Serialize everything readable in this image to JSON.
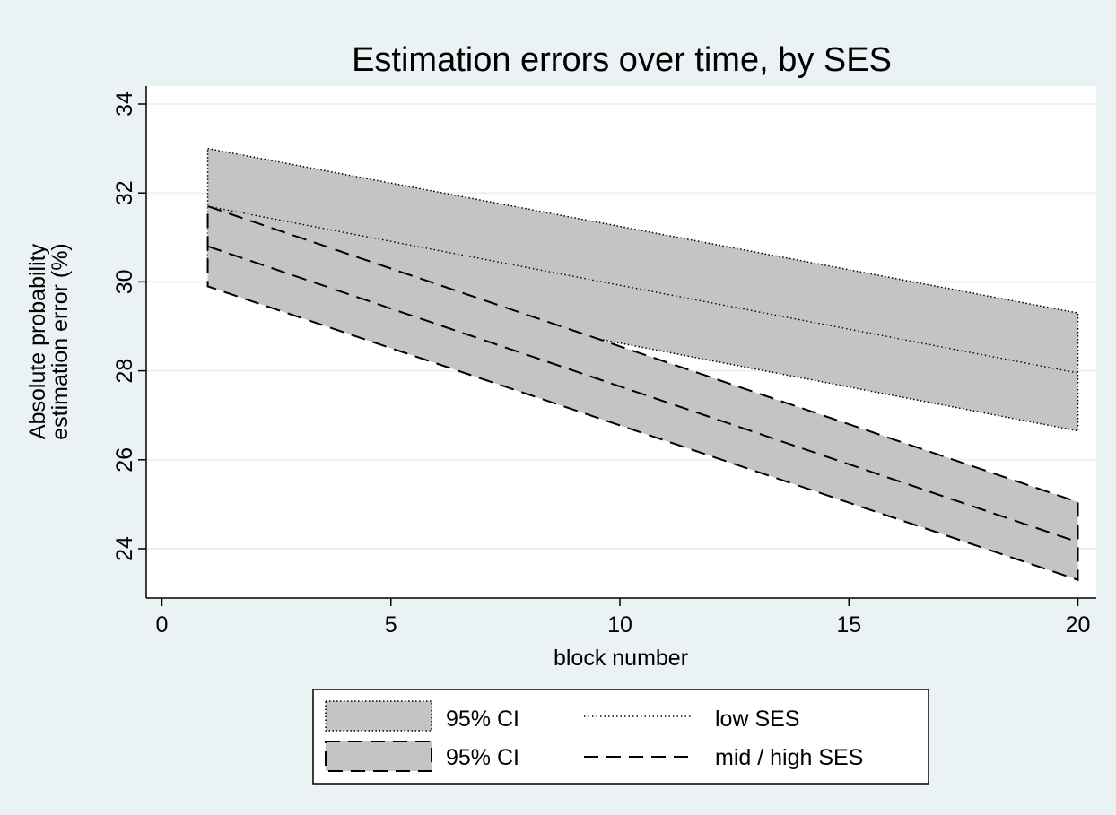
{
  "chart_data": {
    "type": "area",
    "title": "Estimation errors over time, by SES",
    "xlabel": "block number",
    "ylabel": [
      "Absolute probability",
      "estimation error (%)"
    ],
    "xlim": [
      0,
      20
    ],
    "ylim": [
      23,
      34.5
    ],
    "xticks": [
      "0",
      "5",
      "10",
      "15",
      "20"
    ],
    "yticks": [
      "24",
      "26",
      "28",
      "30",
      "32",
      "34"
    ],
    "xtick_values": [
      0,
      5,
      10,
      15,
      20
    ],
    "ytick_values": [
      24,
      26,
      28,
      30,
      32,
      34
    ],
    "grid": true,
    "legend_position": "bottom",
    "colors": {
      "background": "#eaf2f3",
      "plot_bg": "#ffffff",
      "band": "#c4c4c4",
      "line": "#000000",
      "grid": "#eaf2f3"
    },
    "series": [
      {
        "name": "low SES",
        "style": "dotted",
        "ci_label": "95% CI",
        "x": [
          1,
          20
        ],
        "mean": [
          31.7,
          27.95
        ],
        "ci_upper": [
          33.0,
          29.3
        ],
        "ci_lower": [
          30.4,
          26.65
        ]
      },
      {
        "name": "mid / high SES",
        "style": "dashed",
        "ci_label": "95% CI",
        "x": [
          1,
          20
        ],
        "mean": [
          30.8,
          24.15
        ],
        "ci_upper": [
          31.7,
          25.05
        ],
        "ci_lower": [
          29.9,
          23.3
        ]
      }
    ]
  }
}
